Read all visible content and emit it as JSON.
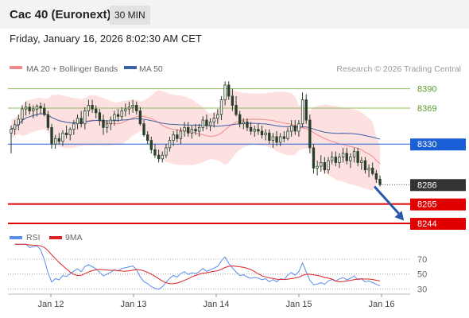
{
  "header": {
    "title": "Cac 40 (Euronext)",
    "timeframe_label": "30 MIN",
    "datetime": "Friday, January 16, 2026 8:02:30 AM CET"
  },
  "legend": {
    "ma20": "MA 20 + Bollinger Bands",
    "ma50": "MA 50",
    "credit": "Research © 2026 Trading Central"
  },
  "rsi_legend": {
    "rsi": "RSI",
    "ma": "9MA"
  },
  "colors": {
    "candle": "#2a3f2a",
    "bollinger_fill": "#fde0e0",
    "ma20": "#f08a8a",
    "ma50": "#3b5fa8",
    "resistance": "#8fbc5a",
    "pivot": "#1a5fd6",
    "last": "#333333",
    "support": "#e00000",
    "arrow": "#2a57a8",
    "rsi": "#5b8def",
    "rsi_ma": "#dd2222"
  },
  "chart_data": [
    {
      "type": "candlestick",
      "x_ticks": [
        "Jan 12",
        "Jan 13",
        "Jan 14",
        "Jan 15",
        "Jan 16"
      ],
      "ylim": [
        8238,
        8400
      ],
      "levels": [
        {
          "label": "8390",
          "value": 8390,
          "kind": "resistance"
        },
        {
          "label": "8369",
          "value": 8369,
          "kind": "resistance"
        },
        {
          "label": "8330",
          "value": 8330,
          "kind": "pivot"
        },
        {
          "label": "8286",
          "value": 8286,
          "kind": "last"
        },
        {
          "label": "8265",
          "value": 8265,
          "kind": "support"
        },
        {
          "label": "8244",
          "value": 8244,
          "kind": "support"
        }
      ],
      "forecast_arrow": {
        "from": [
          98.5,
          8284
        ],
        "to": [
          106.5,
          8247
        ]
      },
      "candles": [
        [
          0,
          8342,
          8350,
          8320,
          8346
        ],
        [
          1,
          8346,
          8356,
          8340,
          8351
        ],
        [
          2,
          8351,
          8362,
          8345,
          8357
        ],
        [
          3,
          8357,
          8372,
          8352,
          8368
        ],
        [
          4,
          8368,
          8376,
          8361,
          8370
        ],
        [
          5,
          8370,
          8374,
          8362,
          8366
        ],
        [
          6,
          8366,
          8372,
          8358,
          8368
        ],
        [
          7,
          8368,
          8373,
          8360,
          8371
        ],
        [
          8,
          8371,
          8375,
          8363,
          8369
        ],
        [
          9,
          8369,
          8374,
          8360,
          8362
        ],
        [
          10,
          8362,
          8366,
          8345,
          8348
        ],
        [
          11,
          8348,
          8352,
          8325,
          8330
        ],
        [
          12,
          8330,
          8340,
          8325,
          8336
        ],
        [
          13,
          8336,
          8342,
          8330,
          8333
        ],
        [
          14,
          8333,
          8345,
          8328,
          8342
        ],
        [
          15,
          8342,
          8350,
          8336,
          8340
        ],
        [
          16,
          8340,
          8348,
          8334,
          8346
        ],
        [
          17,
          8346,
          8356,
          8340,
          8352
        ],
        [
          18,
          8352,
          8362,
          8346,
          8358
        ],
        [
          19,
          8358,
          8366,
          8348,
          8352
        ],
        [
          20,
          8352,
          8370,
          8346,
          8366
        ],
        [
          21,
          8366,
          8378,
          8360,
          8372
        ],
        [
          22,
          8372,
          8378,
          8364,
          8368
        ],
        [
          23,
          8368,
          8372,
          8358,
          8364
        ],
        [
          24,
          8364,
          8368,
          8350,
          8356
        ],
        [
          25,
          8356,
          8362,
          8340,
          8348
        ],
        [
          26,
          8348,
          8356,
          8342,
          8352
        ],
        [
          27,
          8352,
          8360,
          8345,
          8356
        ],
        [
          28,
          8356,
          8366,
          8350,
          8362
        ],
        [
          29,
          8362,
          8368,
          8354,
          8360
        ],
        [
          30,
          8360,
          8370,
          8356,
          8366
        ],
        [
          31,
          8366,
          8374,
          8360,
          8368
        ],
        [
          32,
          8368,
          8376,
          8362,
          8370
        ],
        [
          33,
          8370,
          8378,
          8364,
          8372
        ],
        [
          34,
          8372,
          8376,
          8362,
          8366
        ],
        [
          35,
          8366,
          8370,
          8350,
          8352
        ],
        [
          36,
          8352,
          8356,
          8338,
          8340
        ],
        [
          37,
          8340,
          8344,
          8330,
          8334
        ],
        [
          38,
          8334,
          8338,
          8320,
          8324
        ],
        [
          39,
          8324,
          8330,
          8315,
          8318
        ],
        [
          40,
          8318,
          8324,
          8310,
          8314
        ],
        [
          41,
          8314,
          8322,
          8310,
          8318
        ],
        [
          42,
          8318,
          8330,
          8315,
          8326
        ],
        [
          43,
          8326,
          8338,
          8322,
          8334
        ],
        [
          44,
          8334,
          8344,
          8328,
          8340
        ],
        [
          45,
          8340,
          8346,
          8332,
          8336
        ],
        [
          46,
          8336,
          8348,
          8330,
          8344
        ],
        [
          47,
          8344,
          8354,
          8338,
          8348
        ],
        [
          48,
          8348,
          8354,
          8338,
          8342
        ],
        [
          49,
          8342,
          8350,
          8336,
          8346
        ],
        [
          50,
          8346,
          8352,
          8340,
          8344
        ],
        [
          51,
          8344,
          8352,
          8338,
          8348
        ],
        [
          52,
          8348,
          8360,
          8344,
          8356
        ],
        [
          53,
          8356,
          8362,
          8346,
          8350
        ],
        [
          54,
          8350,
          8358,
          8344,
          8354
        ],
        [
          55,
          8354,
          8364,
          8348,
          8358
        ],
        [
          56,
          8358,
          8368,
          8352,
          8362
        ],
        [
          57,
          8362,
          8382,
          8356,
          8378
        ],
        [
          58,
          8378,
          8398,
          8372,
          8394
        ],
        [
          59,
          8394,
          8398,
          8378,
          8382
        ],
        [
          60,
          8382,
          8390,
          8366,
          8372
        ],
        [
          61,
          8372,
          8382,
          8360,
          8362
        ],
        [
          62,
          8362,
          8366,
          8348,
          8352
        ],
        [
          63,
          8352,
          8358,
          8346,
          8354
        ],
        [
          64,
          8354,
          8358,
          8344,
          8348
        ],
        [
          65,
          8348,
          8354,
          8340,
          8344
        ],
        [
          66,
          8344,
          8350,
          8338,
          8346
        ],
        [
          67,
          8346,
          8352,
          8340,
          8344
        ],
        [
          68,
          8344,
          8350,
          8336,
          8340
        ],
        [
          69,
          8340,
          8346,
          8334,
          8342
        ],
        [
          70,
          8342,
          8346,
          8330,
          8334
        ],
        [
          71,
          8334,
          8342,
          8326,
          8338
        ],
        [
          72,
          8338,
          8344,
          8328,
          8332
        ],
        [
          73,
          8332,
          8342,
          8328,
          8338
        ],
        [
          74,
          8338,
          8344,
          8332,
          8336
        ],
        [
          75,
          8336,
          8348,
          8334,
          8344
        ],
        [
          76,
          8344,
          8356,
          8338,
          8350
        ],
        [
          77,
          8350,
          8356,
          8340,
          8344
        ],
        [
          78,
          8344,
          8356,
          8338,
          8352
        ],
        [
          79,
          8352,
          8386,
          8348,
          8378
        ],
        [
          80,
          8378,
          8384,
          8352,
          8356
        ],
        [
          81,
          8356,
          8362,
          8320,
          8326
        ],
        [
          82,
          8326,
          8330,
          8298,
          8304
        ],
        [
          83,
          8304,
          8312,
          8296,
          8306
        ],
        [
          84,
          8306,
          8318,
          8300,
          8310
        ],
        [
          85,
          8310,
          8316,
          8298,
          8302
        ],
        [
          86,
          8302,
          8316,
          8298,
          8312
        ],
        [
          87,
          8312,
          8322,
          8308,
          8316
        ],
        [
          88,
          8316,
          8322,
          8306,
          8310
        ],
        [
          89,
          8310,
          8320,
          8304,
          8316
        ],
        [
          90,
          8316,
          8326,
          8310,
          8320
        ],
        [
          91,
          8320,
          8326,
          8308,
          8312
        ],
        [
          92,
          8312,
          8320,
          8304,
          8316
        ],
        [
          93,
          8316,
          8326,
          8310,
          8322
        ],
        [
          94,
          8322,
          8326,
          8306,
          8310
        ],
        [
          95,
          8310,
          8316,
          8302,
          8312
        ],
        [
          96,
          8312,
          8316,
          8298,
          8302
        ],
        [
          97,
          8302,
          8308,
          8294,
          8304
        ],
        [
          98,
          8304,
          8310,
          8296,
          8298
        ],
        [
          99,
          8298,
          8302,
          8288,
          8292
        ],
        [
          100,
          8292,
          8296,
          8284,
          8286
        ]
      ]
    },
    {
      "type": "line",
      "ylim": [
        25,
        85
      ],
      "y_ticks": [
        30,
        50,
        70
      ],
      "series": []
    }
  ]
}
